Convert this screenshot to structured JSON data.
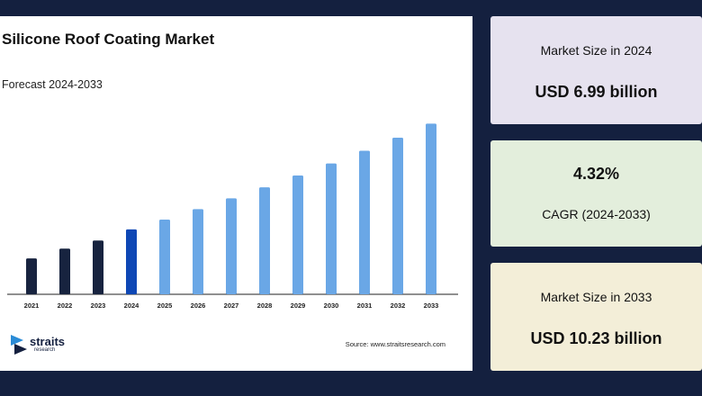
{
  "header": {
    "title": "Silicone Roof Coating Market",
    "subtitle": "Forecast 2024-2033"
  },
  "footer": {
    "logo_text": "straits",
    "logo_subtext": "research",
    "source": "Source: www.straitsresearch.com"
  },
  "cards": [
    {
      "label": "Market Size in 2024",
      "value": "USD 6.99 billion"
    },
    {
      "label": "CAGR (2024-2033)",
      "value": "4.32%"
    },
    {
      "label": "Market Size in 2033",
      "value": "USD 10.23 billion"
    }
  ],
  "colors": {
    "historical": "#17233f",
    "base_year": "#0e47b5",
    "forecast": "#6aa7e6"
  },
  "chart_data": {
    "type": "bar",
    "categories": [
      "2021",
      "2022",
      "2023",
      "2024",
      "2025",
      "2026",
      "2027",
      "2028",
      "2029",
      "2030",
      "2031",
      "2032",
      "2033"
    ],
    "values": [
      6.1,
      6.4,
      6.65,
      6.99,
      7.29,
      7.61,
      7.94,
      8.28,
      8.64,
      9.01,
      9.4,
      9.8,
      10.23
    ],
    "bar_roles": [
      "historical",
      "historical",
      "historical",
      "base_year",
      "forecast",
      "forecast",
      "forecast",
      "forecast",
      "forecast",
      "forecast",
      "forecast",
      "forecast",
      "forecast"
    ],
    "title": "Silicone Roof Coating Market",
    "subtitle": "Forecast 2024-2033",
    "xlabel": "",
    "ylabel": "",
    "ylim": [
      5,
      10.6
    ],
    "grid": false,
    "legend": "none"
  }
}
